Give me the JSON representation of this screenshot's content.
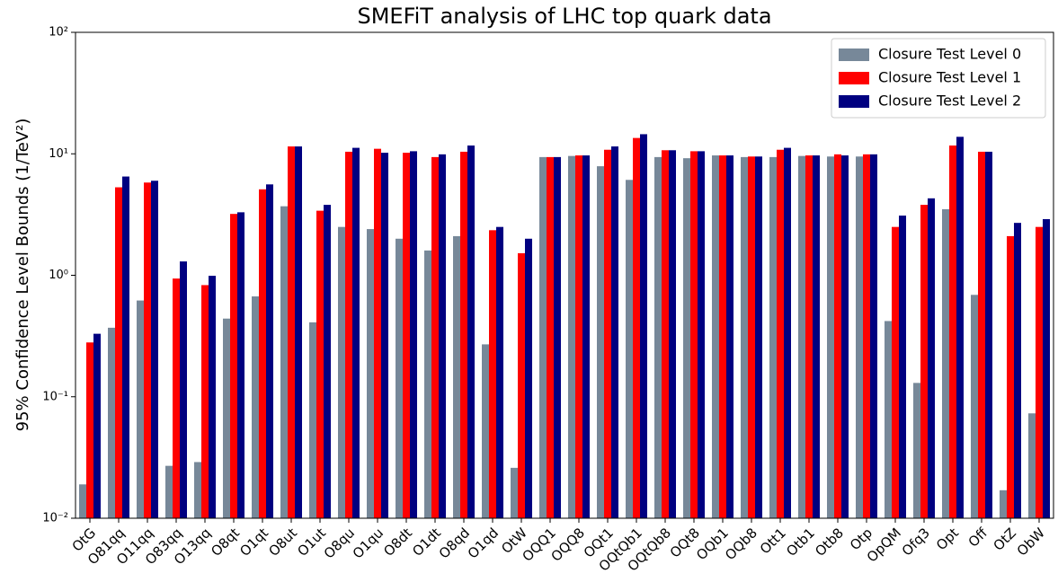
{
  "chart_data": {
    "type": "bar",
    "title": "SMEFiT analysis of LHC top quark data",
    "ylabel": "95% Confidence Level Bounds (1/TeV²)",
    "log_y": true,
    "legend": "upper right",
    "categories": [
      "OtG",
      "O81qq",
      "O11qq",
      "O83qq",
      "O13qq",
      "O8qt",
      "O1qt",
      "O8ut",
      "O1ut",
      "O8qu",
      "O1qu",
      "O8dt",
      "O1dt",
      "O8qd",
      "O1qd",
      "OtW",
      "OQQ1",
      "OQQ8",
      "OQt1",
      "OQtQb1",
      "OQtQb8",
      "OQt8",
      "OQb1",
      "OQb8",
      "Ott1",
      "Otb1",
      "Otb8",
      "Otp",
      "OpQM",
      "Ofq3",
      "Opt",
      "Off",
      "OtZ",
      "ObW"
    ],
    "series": [
      {
        "name": "Closure Test Level 0",
        "color": "#778899",
        "values": [
          0.019,
          0.37,
          0.62,
          0.027,
          0.029,
          0.44,
          0.67,
          3.7,
          0.41,
          2.5,
          2.4,
          2.0,
          1.6,
          2.1,
          0.27,
          0.026,
          9.4,
          9.6,
          7.9,
          6.1,
          9.4,
          9.2,
          9.7,
          9.4,
          9.4,
          9.6,
          9.5,
          9.5,
          0.42,
          0.13,
          3.5,
          0.69,
          0.017,
          0.073
        ]
      },
      {
        "name": "Closure Test Level 1",
        "color": "#ff0000",
        "values": [
          0.28,
          5.3,
          5.8,
          0.94,
          0.83,
          3.2,
          5.1,
          11.5,
          3.4,
          10.4,
          11,
          10.2,
          9.4,
          10.4,
          2.35,
          1.52,
          9.4,
          9.7,
          10.8,
          13.5,
          10.7,
          10.5,
          9.7,
          9.5,
          10.8,
          9.7,
          9.9,
          9.9,
          2.5,
          3.8,
          11.7,
          10.4,
          2.1,
          2.5
        ]
      },
      {
        "name": "Closure Test Level 2",
        "color": "#000080",
        "values": [
          0.33,
          6.5,
          6.0,
          1.3,
          0.99,
          3.3,
          5.6,
          11.5,
          3.8,
          11.2,
          10.2,
          10.5,
          9.9,
          11.7,
          2.5,
          2.0,
          9.4,
          9.7,
          11.5,
          14.5,
          10.7,
          10.5,
          9.7,
          9.5,
          11.2,
          9.7,
          9.7,
          9.9,
          3.1,
          4.3,
          13.8,
          10.4,
          2.7,
          2.9
        ]
      }
    ],
    "ylim": [
      0.01,
      100
    ],
    "yticks": [
      {
        "value": 0.01,
        "label": "10⁻²"
      },
      {
        "value": 0.1,
        "label": "10⁻¹"
      },
      {
        "value": 1,
        "label": "10⁰"
      },
      {
        "value": 10,
        "label": "10¹"
      },
      {
        "value": 100,
        "label": "10²"
      }
    ]
  }
}
